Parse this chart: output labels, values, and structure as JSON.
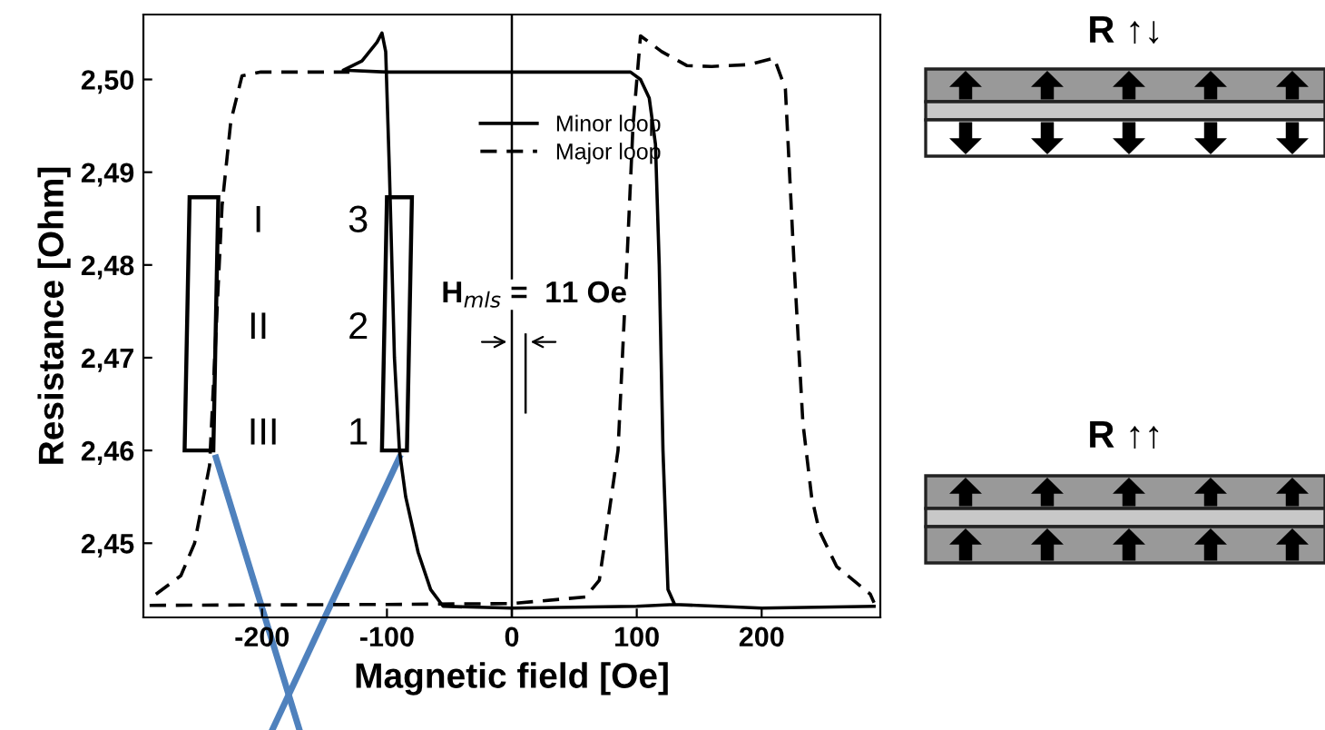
{
  "chart_data": {
    "type": "line",
    "xlabel": "Magnetic field [Oe]",
    "ylabel": "Resistance [Ohm]",
    "xlim": [
      -295,
      295
    ],
    "ylim": [
      2.442,
      2.507
    ],
    "xticks": [
      -200,
      -100,
      0,
      100,
      200
    ],
    "yticks": [
      {
        "value": 2.45,
        "label": "2,45"
      },
      {
        "value": 2.46,
        "label": "2,46"
      },
      {
        "value": 2.47,
        "label": "2,47"
      },
      {
        "value": 2.48,
        "label": "2,48"
      },
      {
        "value": 2.49,
        "label": "2,49"
      },
      {
        "value": 2.5,
        "label": "2,50"
      }
    ],
    "legend": "top",
    "grid": false,
    "series": [
      {
        "name": "Minor loop",
        "color": "#000000",
        "line_style": "solid",
        "x": [
          130,
          125,
          121,
          118,
          115,
          110,
          103,
          95,
          0,
          -100,
          -135,
          -120,
          -108,
          -104,
          -101,
          -98,
          -94,
          -90,
          -85,
          -75,
          -65,
          -55,
          0,
          100,
          130,
          200,
          290
        ],
        "values": [
          2.4435,
          2.445,
          2.46,
          2.48,
          2.493,
          2.498,
          2.5,
          2.5008,
          2.5008,
          2.5008,
          2.501,
          2.502,
          2.504,
          2.505,
          2.503,
          2.49,
          2.47,
          2.46,
          2.455,
          2.449,
          2.445,
          2.4432,
          2.443,
          2.4432,
          2.4434,
          2.443,
          2.4432
        ]
      },
      {
        "name": "Major loop",
        "color": "#000000",
        "line_style": "dashed",
        "x": [
          -290,
          -100,
          0,
          59,
          70,
          85,
          92,
          97,
          103,
          120,
          140,
          160,
          190,
          210,
          219,
          226,
          233,
          240,
          246,
          260,
          287,
          290,
          null,
          -285,
          -265,
          -254,
          -242,
          -232,
          -225,
          -216,
          -201,
          -130
        ],
        "values": [
          2.4433,
          2.4434,
          2.4435,
          2.4442,
          2.446,
          2.46,
          2.48,
          2.495,
          2.5047,
          2.503,
          2.5015,
          2.5014,
          2.5016,
          2.5023,
          2.499,
          2.48,
          2.463,
          2.455,
          2.4514,
          2.4475,
          2.4445,
          2.4436,
          null,
          2.4445,
          2.4465,
          2.45,
          2.4584,
          2.4864,
          2.4955,
          2.5004,
          2.5008,
          2.5008
        ]
      }
    ],
    "ref_lines": [
      {
        "axis": "x",
        "value": 0,
        "color": "#000000",
        "line_style": "solid"
      }
    ],
    "annotations": [
      "I",
      "II",
      "III",
      "3",
      "2",
      "1",
      "H$_{mls}$ =  11 Oe",
      "R ↑↓",
      "R ↑↑"
    ]
  }
}
